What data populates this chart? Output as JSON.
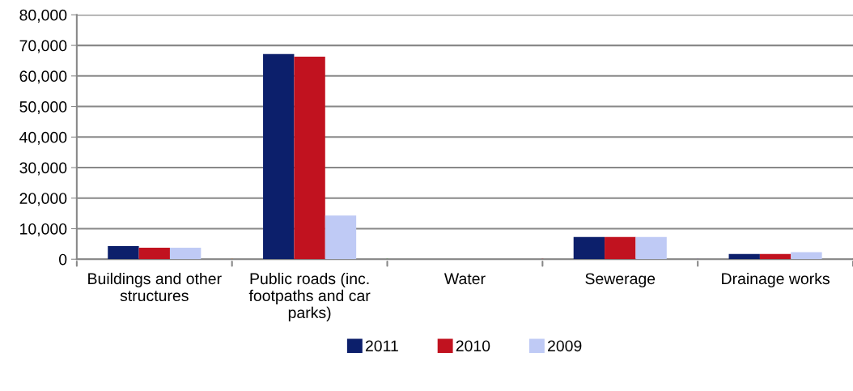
{
  "chart_data": {
    "type": "bar",
    "categories": [
      "Buildings and other structures",
      "Public roads (inc. footpaths and car parks)",
      "Water",
      "Sewerage",
      "Drainage works"
    ],
    "series": [
      {
        "name": "2011",
        "color": "#0c1f6b",
        "values": [
          4300,
          67200,
          0,
          7300,
          1700
        ]
      },
      {
        "name": "2010",
        "color": "#c1121f",
        "values": [
          3800,
          66300,
          0,
          7300,
          1700
        ]
      },
      {
        "name": "2009",
        "color": "#bfcaf5",
        "values": [
          3800,
          14300,
          0,
          7300,
          2300
        ]
      }
    ],
    "ylim": [
      0,
      80000
    ],
    "yticks": [
      {
        "value": 0,
        "label": "0"
      },
      {
        "value": 10000,
        "label": "10,000"
      },
      {
        "value": 20000,
        "label": "20,000"
      },
      {
        "value": 30000,
        "label": "30,000"
      },
      {
        "value": 40000,
        "label": "40,000"
      },
      {
        "value": 50000,
        "label": "50,000"
      },
      {
        "value": 60000,
        "label": "60,000"
      },
      {
        "value": 70000,
        "label": "70,000"
      },
      {
        "value": 80000,
        "label": "80,000"
      }
    ],
    "grid": "y",
    "legend": "bottom"
  }
}
